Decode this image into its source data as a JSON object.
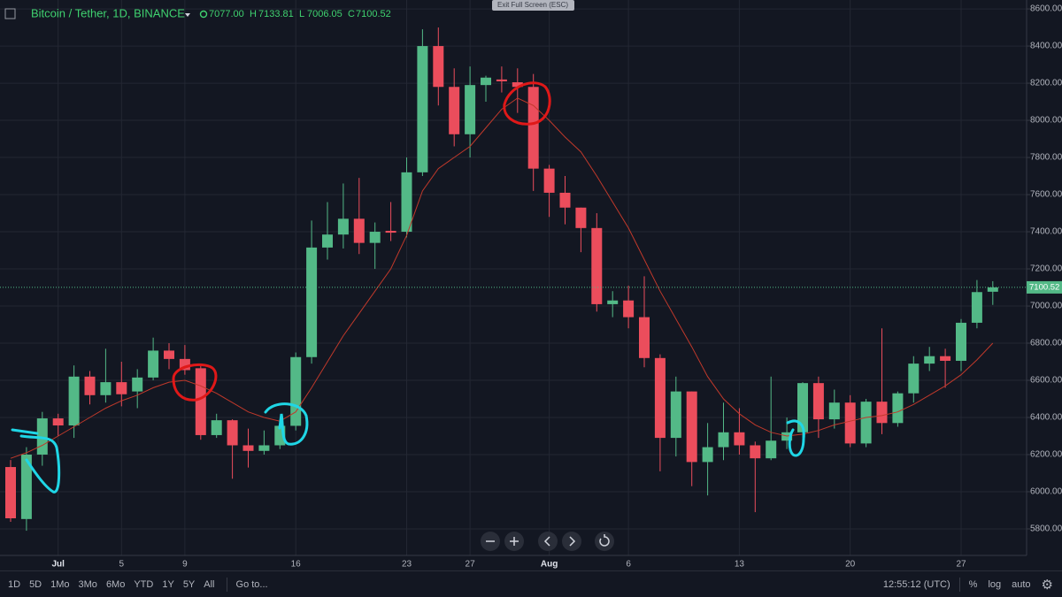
{
  "header": {
    "title": "Bitcoin / Tether, 1D, BINANCE",
    "o_label": "O",
    "o": "7077.00",
    "h_label": "H",
    "h": "7133.81",
    "l_label": "L",
    "l": "7006.05",
    "c_label": "C",
    "c": "7100.52",
    "exit": "Exit Full Screen (ESC)"
  },
  "toolbar": {
    "ranges": [
      "1D",
      "5D",
      "1Mo",
      "3Mo",
      "6Mo",
      "YTD",
      "1Y",
      "5Y",
      "All"
    ],
    "goto": "Go to...",
    "time": "12:55:12 (UTC)",
    "percent": "%",
    "log": "log",
    "auto": "auto"
  },
  "chart_data": {
    "type": "candlestick",
    "categories": [
      null,
      null,
      null,
      "Jul",
      null,
      null,
      null,
      "5",
      null,
      null,
      null,
      "9",
      null,
      null,
      null,
      null,
      null,
      null,
      "16",
      null,
      null,
      null,
      null,
      null,
      null,
      "23",
      null,
      null,
      null,
      "27",
      null,
      null,
      null,
      null,
      "Aug",
      null,
      null,
      null,
      null,
      "6",
      null,
      null,
      null,
      null,
      null,
      null,
      "13",
      null,
      null,
      null,
      null,
      null,
      null,
      "20",
      null,
      null,
      null,
      null,
      null,
      null,
      "27",
      null,
      null
    ],
    "open": [
      6133,
      5853,
      6200,
      6395,
      6357,
      6620,
      6520,
      6590,
      6540,
      6615,
      6760,
      6715,
      6665,
      6305,
      6385,
      6250,
      6220,
      6250,
      6355,
      6725,
      7315,
      7385,
      7470,
      7340,
      7405,
      7400,
      7720,
      8400,
      8180,
      7925,
      8190,
      8220,
      8205,
      8180,
      7740,
      7610,
      7530,
      7420,
      7010,
      7030,
      6940,
      6720,
      6290,
      6540,
      6160,
      6240,
      6320,
      6250,
      6180,
      6275,
      6320,
      6585,
      6390,
      6480,
      6260,
      6485,
      6370,
      6530,
      6690,
      6730,
      6705,
      6910,
      7077
    ],
    "high": [
      6171,
      6240,
      6430,
      6420,
      6680,
      6650,
      6770,
      6700,
      6660,
      6830,
      6800,
      6790,
      6690,
      6420,
      6390,
      6340,
      6330,
      6390,
      6750,
      7460,
      7560,
      7660,
      7690,
      7450,
      7560,
      7800,
      8490,
      8500,
      8280,
      8290,
      8240,
      8290,
      8280,
      8250,
      7760,
      7700,
      7530,
      7500,
      7080,
      7110,
      7160,
      6740,
      6620,
      6540,
      6370,
      6480,
      6450,
      6270,
      6620,
      6400,
      6590,
      6620,
      6550,
      6520,
      6500,
      6880,
      6540,
      6730,
      6780,
      6770,
      6930,
      7140,
      7133.81
    ],
    "low": [
      5838,
      5790,
      6140,
      6300,
      6290,
      6470,
      6480,
      6460,
      6450,
      6600,
      6660,
      6630,
      6280,
      6290,
      6070,
      6130,
      6200,
      6230,
      6330,
      6690,
      7250,
      7310,
      7280,
      7200,
      7350,
      7370,
      7700,
      8080,
      7860,
      7800,
      8100,
      8150,
      8040,
      7620,
      7480,
      7440,
      7290,
      6970,
      6940,
      6880,
      6670,
      6110,
      6190,
      6030,
      5980,
      6170,
      6200,
      5890,
      6170,
      6230,
      6290,
      6290,
      6340,
      6240,
      6240,
      6310,
      6350,
      6480,
      6650,
      6560,
      6650,
      6880,
      7006.05
    ],
    "close": [
      5857,
      6200,
      6395,
      6357,
      6620,
      6520,
      6590,
      6525,
      6615,
      6760,
      6715,
      6655,
      6305,
      6385,
      6250,
      6220,
      6250,
      6355,
      6725,
      7315,
      7385,
      7470,
      7340,
      7400,
      7395,
      7720,
      8400,
      8180,
      7925,
      8190,
      8230,
      8210,
      8180,
      7740,
      7610,
      7530,
      7420,
      7010,
      7030,
      6940,
      6720,
      6290,
      6540,
      6160,
      6240,
      6320,
      6250,
      6180,
      6275,
      6320,
      6585,
      6390,
      6480,
      6260,
      6485,
      6370,
      6530,
      6690,
      6730,
      6705,
      6910,
      7075,
      7100.52
    ],
    "up_color": "#53b987",
    "down_color": "#eb4d5c",
    "ma": {
      "color": "#c0392b",
      "values": [
        6180,
        6210,
        6250,
        6300,
        6350,
        6400,
        6450,
        6490,
        6520,
        6560,
        6590,
        6600,
        6570,
        6530,
        6480,
        6430,
        6400,
        6380,
        6430,
        6560,
        6700,
        6840,
        6960,
        7080,
        7200,
        7380,
        7620,
        7740,
        7800,
        7860,
        7960,
        8060,
        8120,
        8080,
        8000,
        7910,
        7830,
        7700,
        7560,
        7420,
        7250,
        7080,
        6930,
        6780,
        6620,
        6500,
        6420,
        6360,
        6320,
        6300,
        6310,
        6330,
        6360,
        6380,
        6400,
        6410,
        6430,
        6470,
        6520,
        6570,
        6630,
        6710,
        6800
      ]
    },
    "ylim": [
      5657,
      8648
    ],
    "yticks": [
      {
        "value": 5800,
        "label": "5800.00"
      },
      {
        "value": 6000,
        "label": "6000.00"
      },
      {
        "value": 6200,
        "label": "6200.00"
      },
      {
        "value": 6400,
        "label": "6400.00"
      },
      {
        "value": 6600,
        "label": "6600.00"
      },
      {
        "value": 6800,
        "label": "6800.00"
      },
      {
        "value": 7000,
        "label": "7000.00"
      },
      {
        "value": 7200,
        "label": "7200.00"
      },
      {
        "value": 7400,
        "label": "7400.00"
      },
      {
        "value": 7600,
        "label": "7600.00"
      },
      {
        "value": 7800,
        "label": "7800.00"
      },
      {
        "value": 8000,
        "label": "8000.00"
      },
      {
        "value": 8200,
        "label": "8200.00"
      },
      {
        "value": 8400,
        "label": "8400.00"
      },
      {
        "value": 8600,
        "label": "8600.00"
      }
    ],
    "grid": true
  }
}
